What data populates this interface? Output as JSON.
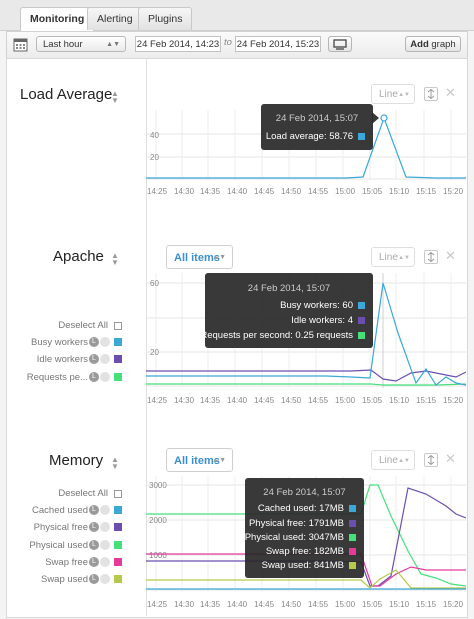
{
  "tabs": [
    {
      "label": "Monitoring"
    },
    {
      "label": "Alerting"
    },
    {
      "label": "Plugins"
    }
  ],
  "toolbar": {
    "range_select": "Last hour",
    "from": "24 Feb 2014, 14:23",
    "to_label": "to",
    "to": "24 Feb 2014, 15:23",
    "add_graph_bold": "Add",
    "add_graph_rest": "graph"
  },
  "x_ticks": [
    "14:25",
    "14:30",
    "14:35",
    "14:40",
    "14:45",
    "14:50",
    "14:55",
    "15:00",
    "15:05",
    "15:10",
    "15:15",
    "15:20"
  ],
  "graphs": {
    "load": {
      "title": "Load Average",
      "type_select": "Line",
      "y_ticks": [
        "40",
        "20"
      ],
      "tooltip": {
        "time": "24 Feb 2014, 15:07",
        "rows": [
          {
            "label": "Load average: 58.76",
            "color": "#3ba8d8"
          }
        ]
      }
    },
    "apache": {
      "title": "Apache",
      "items_select": "All items",
      "type_select": "Line",
      "y_ticks": [
        "60",
        "20"
      ],
      "deselect": "Deselect All",
      "legend": [
        {
          "label": "Busy workers",
          "color": "#3ba8d8"
        },
        {
          "label": "Idle workers",
          "color": "#6b4fb0"
        },
        {
          "label": "Requests pe...",
          "color": "#45e07a"
        }
      ],
      "tooltip": {
        "time": "24 Feb 2014, 15:07",
        "rows": [
          {
            "label": "Busy workers: 60",
            "color": "#3ba8d8"
          },
          {
            "label": "Idle workers: 4",
            "color": "#6b4fb0"
          },
          {
            "label": "Requests per second: 0.25 requests",
            "color": "#45e07a"
          }
        ]
      }
    },
    "memory": {
      "title": "Memory",
      "items_select": "All items",
      "type_select": "Line",
      "y_ticks": [
        "3000",
        "2000",
        "1000"
      ],
      "deselect": "Deselect All",
      "legend": [
        {
          "label": "Cached used",
          "color": "#3ba8d8"
        },
        {
          "label": "Physical free",
          "color": "#6b4fb0"
        },
        {
          "label": "Physical used",
          "color": "#45e07a"
        },
        {
          "label": "Swap free",
          "color": "#e43b9a"
        },
        {
          "label": "Swap used",
          "color": "#b5c94a"
        }
      ],
      "tooltip": {
        "time": "24 Feb 2014, 15:07",
        "rows": [
          {
            "label": "Cached used: 17MB",
            "color": "#3ba8d8"
          },
          {
            "label": "Physical free: 1791MB",
            "color": "#6b4fb0"
          },
          {
            "label": "Physical used: 3047MB",
            "color": "#45e07a"
          },
          {
            "label": "Swap free: 182MB",
            "color": "#e43b9a"
          },
          {
            "label": "Swap used: 841MB",
            "color": "#b5c94a"
          }
        ]
      }
    }
  },
  "icons": {
    "calendar": "calendar-icon",
    "rotate": "rotate-icon",
    "fullscreen": "fullscreen-icon",
    "close": "close-icon"
  }
}
